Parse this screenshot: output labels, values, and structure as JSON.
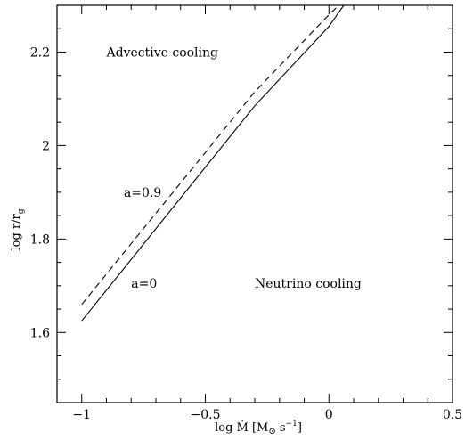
{
  "chart_data": {
    "type": "line",
    "title": "",
    "xlabel": {
      "main": "log Ṁ [M",
      "sun": "⊙",
      "mid": " s",
      "exp": "−1",
      "end": "]"
    },
    "ylabel": {
      "main": "log r/r",
      "sub": "g"
    },
    "xlim": [
      -1.1,
      0.5
    ],
    "ylim": [
      1.45,
      2.3
    ],
    "x_ticks": [
      -1,
      -0.5,
      0,
      0.5
    ],
    "x_tick_labels": [
      "−1",
      "−0.5",
      "0",
      "0.5"
    ],
    "y_ticks": [
      1.6,
      1.8,
      2.0,
      2.2
    ],
    "y_tick_labels": [
      "1.6",
      "1.8",
      "2",
      "2.2"
    ],
    "minor_x_step": 0.1,
    "minor_y_step": 0.05,
    "series": [
      {
        "name": "a=0",
        "style": "solid",
        "x": [
          -1.0,
          -0.3,
          0.0,
          0.06
        ],
        "y": [
          1.625,
          2.085,
          2.255,
          2.3
        ]
      },
      {
        "name": "a=0.9",
        "style": "dashed",
        "x": [
          -1.0,
          -0.3,
          0.0,
          0.04
        ],
        "y": [
          1.66,
          2.115,
          2.28,
          2.3
        ]
      }
    ],
    "annotations": [
      {
        "id": "advective",
        "text": "Advective cooling",
        "x": -0.9,
        "y": 2.2
      },
      {
        "id": "a09",
        "text": "a=0.9",
        "x": -0.83,
        "y": 1.9
      },
      {
        "id": "a0",
        "text": "a=0",
        "x": -0.8,
        "y": 1.705
      },
      {
        "id": "neutrino",
        "text": "Neutrino cooling",
        "x": -0.3,
        "y": 1.705
      }
    ],
    "grid": false
  }
}
